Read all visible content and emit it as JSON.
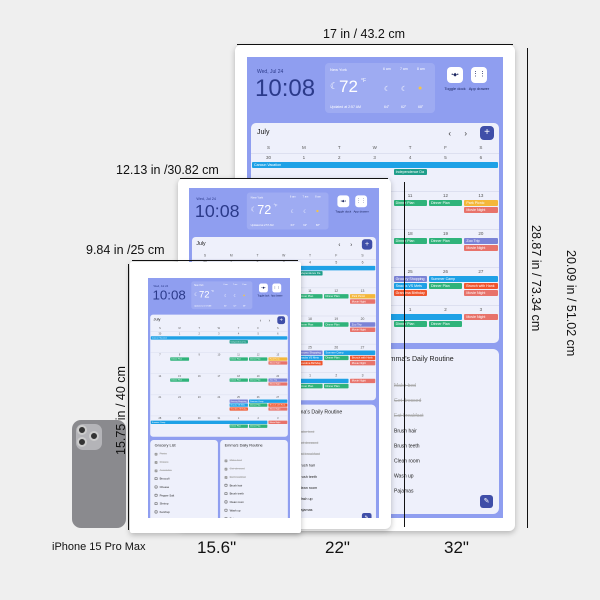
{
  "dimensions": {
    "large_width": "17 in / 43.2 cm",
    "large_height": "28.87 in / 73.34 cm",
    "medium_width": "12.13 in /30.82 cm",
    "medium_height": "20.09 in / 51.02 cm",
    "small_width": "9.84 in /25 cm",
    "small_height": "15.75 in / 40 cm"
  },
  "sizes": {
    "phone": "iPhone 15 Pro Max",
    "small": "15.6\"",
    "medium": "22\"",
    "large": "32\""
  },
  "dashboard": {
    "date": "Wed, Jul 24",
    "clock": "10:08",
    "weather": {
      "city": "New York",
      "temp": "72",
      "unit": "°F",
      "hours": [
        "6 am",
        "7 am",
        "8 am"
      ],
      "icons": [
        "moon",
        "moon",
        "sun"
      ],
      "temps": [
        "64°",
        "62°",
        "68°"
      ],
      "updated": "Updated at 2:57 AM"
    },
    "buttons": [
      {
        "label": "Toggle dock",
        "icon": "dock-icon"
      },
      {
        "label": "App drawer",
        "icon": "grid-icon"
      }
    ],
    "calendar": {
      "month": "July",
      "weekdays": [
        "S",
        "M",
        "T",
        "W",
        "T",
        "F",
        "S"
      ],
      "weeks": [
        {
          "days": [
            "30",
            "1",
            "2",
            "3",
            "4",
            "5",
            "6"
          ],
          "events": [
            {
              "label": "Cancun Vacation",
              "col": 0,
              "span": 7,
              "row": 0,
              "color": "#1ea1e6"
            },
            {
              "label": "Independence Da",
              "col": 4,
              "span": 1,
              "row": 1,
              "color": "#1f9e8a"
            }
          ]
        },
        {
          "days": [
            "7",
            "8",
            "9",
            "10",
            "11",
            "12",
            "13"
          ],
          "events": [
            {
              "label": "Dinner Plan",
              "col": 1,
              "span": 1,
              "row": 0,
              "color": "#2fb37a"
            },
            {
              "label": "Dinner Plan",
              "col": 4,
              "span": 1,
              "row": 0,
              "color": "#2fb37a"
            },
            {
              "label": "Dinner Plan",
              "col": 5,
              "span": 1,
              "row": 0,
              "color": "#2fb37a"
            },
            {
              "label": "Park Picnic",
              "col": 6,
              "span": 1,
              "row": 0,
              "color": "#f4b73a"
            },
            {
              "label": "Movie Night",
              "col": 6,
              "span": 1,
              "row": 1,
              "color": "#e8736b"
            }
          ]
        },
        {
          "days": [
            "14",
            "15",
            "16",
            "17",
            "18",
            "19",
            "20"
          ],
          "events": [
            {
              "label": "Dinner Plan",
              "col": 1,
              "span": 1,
              "row": 0,
              "color": "#2fb37a"
            },
            {
              "label": "Dinner Plan",
              "col": 4,
              "span": 1,
              "row": 0,
              "color": "#2fb37a"
            },
            {
              "label": "Dinner Plan",
              "col": 5,
              "span": 1,
              "row": 0,
              "color": "#2fb37a"
            },
            {
              "label": "Zoo Trip",
              "col": 6,
              "span": 1,
              "row": 0,
              "color": "#7b83d6"
            },
            {
              "label": "Movie Night",
              "col": 6,
              "span": 1,
              "row": 1,
              "color": "#e8736b"
            }
          ]
        },
        {
          "days": [
            "21",
            "22",
            "23",
            "24",
            "25",
            "26",
            "27"
          ],
          "events": [
            {
              "label": "Grocery Shopping",
              "col": 4,
              "span": 1,
              "row": 0,
              "color": "#7b83d6"
            },
            {
              "label": "Summer Camp",
              "col": 5,
              "span": 2,
              "row": 0,
              "color": "#1ea1e6"
            },
            {
              "label": "Snacks VS Mets",
              "col": 4,
              "span": 1,
              "row": 1,
              "color": "#1ea1e6"
            },
            {
              "label": "Dinner Plan",
              "col": 5,
              "span": 1,
              "row": 1,
              "color": "#2fb37a"
            },
            {
              "label": "Brunch with Hank",
              "col": 6,
              "span": 1,
              "row": 1,
              "color": "#f0562e"
            },
            {
              "label": "Grandma Birthday",
              "col": 4,
              "span": 1,
              "row": 2,
              "color": "#f0562e"
            },
            {
              "label": "Movie Night",
              "col": 6,
              "span": 1,
              "row": 2,
              "color": "#e8736b"
            }
          ]
        },
        {
          "days": [
            "28",
            "29",
            "30",
            "31",
            "1",
            "2",
            "3"
          ],
          "events": [
            {
              "label": "Summer Camp",
              "col": 0,
              "span": 6,
              "row": 0,
              "color": "#1ea1e6"
            },
            {
              "label": "Movie Night",
              "col": 6,
              "span": 1,
              "row": 0,
              "color": "#e8736b"
            },
            {
              "label": "Dinner Plan",
              "col": 4,
              "span": 1,
              "row": 1,
              "color": "#2fb37a"
            },
            {
              "label": "Dinner Plan",
              "col": 5,
              "span": 1,
              "row": 1,
              "color": "#2fb37a"
            }
          ]
        }
      ]
    },
    "lists": [
      {
        "title": "Grocery List",
        "items": [
          {
            "label": "Pasta",
            "done": true
          },
          {
            "label": "Onions",
            "done": true
          },
          {
            "label": "Avocados",
            "done": true
          },
          {
            "label": "Broccoli",
            "done": false
          },
          {
            "label": "Cheese",
            "done": false
          },
          {
            "label": "Pepper Salt",
            "done": false
          },
          {
            "label": "Shrimp",
            "done": false
          },
          {
            "label": "Ketchup",
            "done": false
          },
          {
            "label": "Bacon",
            "done": false
          }
        ]
      },
      {
        "title": "Emma's Daily Routine",
        "items": [
          {
            "label": "Make bed",
            "done": true
          },
          {
            "label": "Get dressed",
            "done": true
          },
          {
            "label": "Eat breakfast",
            "done": true
          },
          {
            "label": "Brush hair",
            "done": false
          },
          {
            "label": "Brush teeth",
            "done": false
          },
          {
            "label": "Clean room",
            "done": false
          },
          {
            "label": "Wash up",
            "done": false
          },
          {
            "label": "Pajamas",
            "done": false
          }
        ]
      }
    ]
  },
  "colors": {
    "screen": "#8f9ef0",
    "panel": "#eef0fb",
    "accent": "#3f4ea8"
  }
}
